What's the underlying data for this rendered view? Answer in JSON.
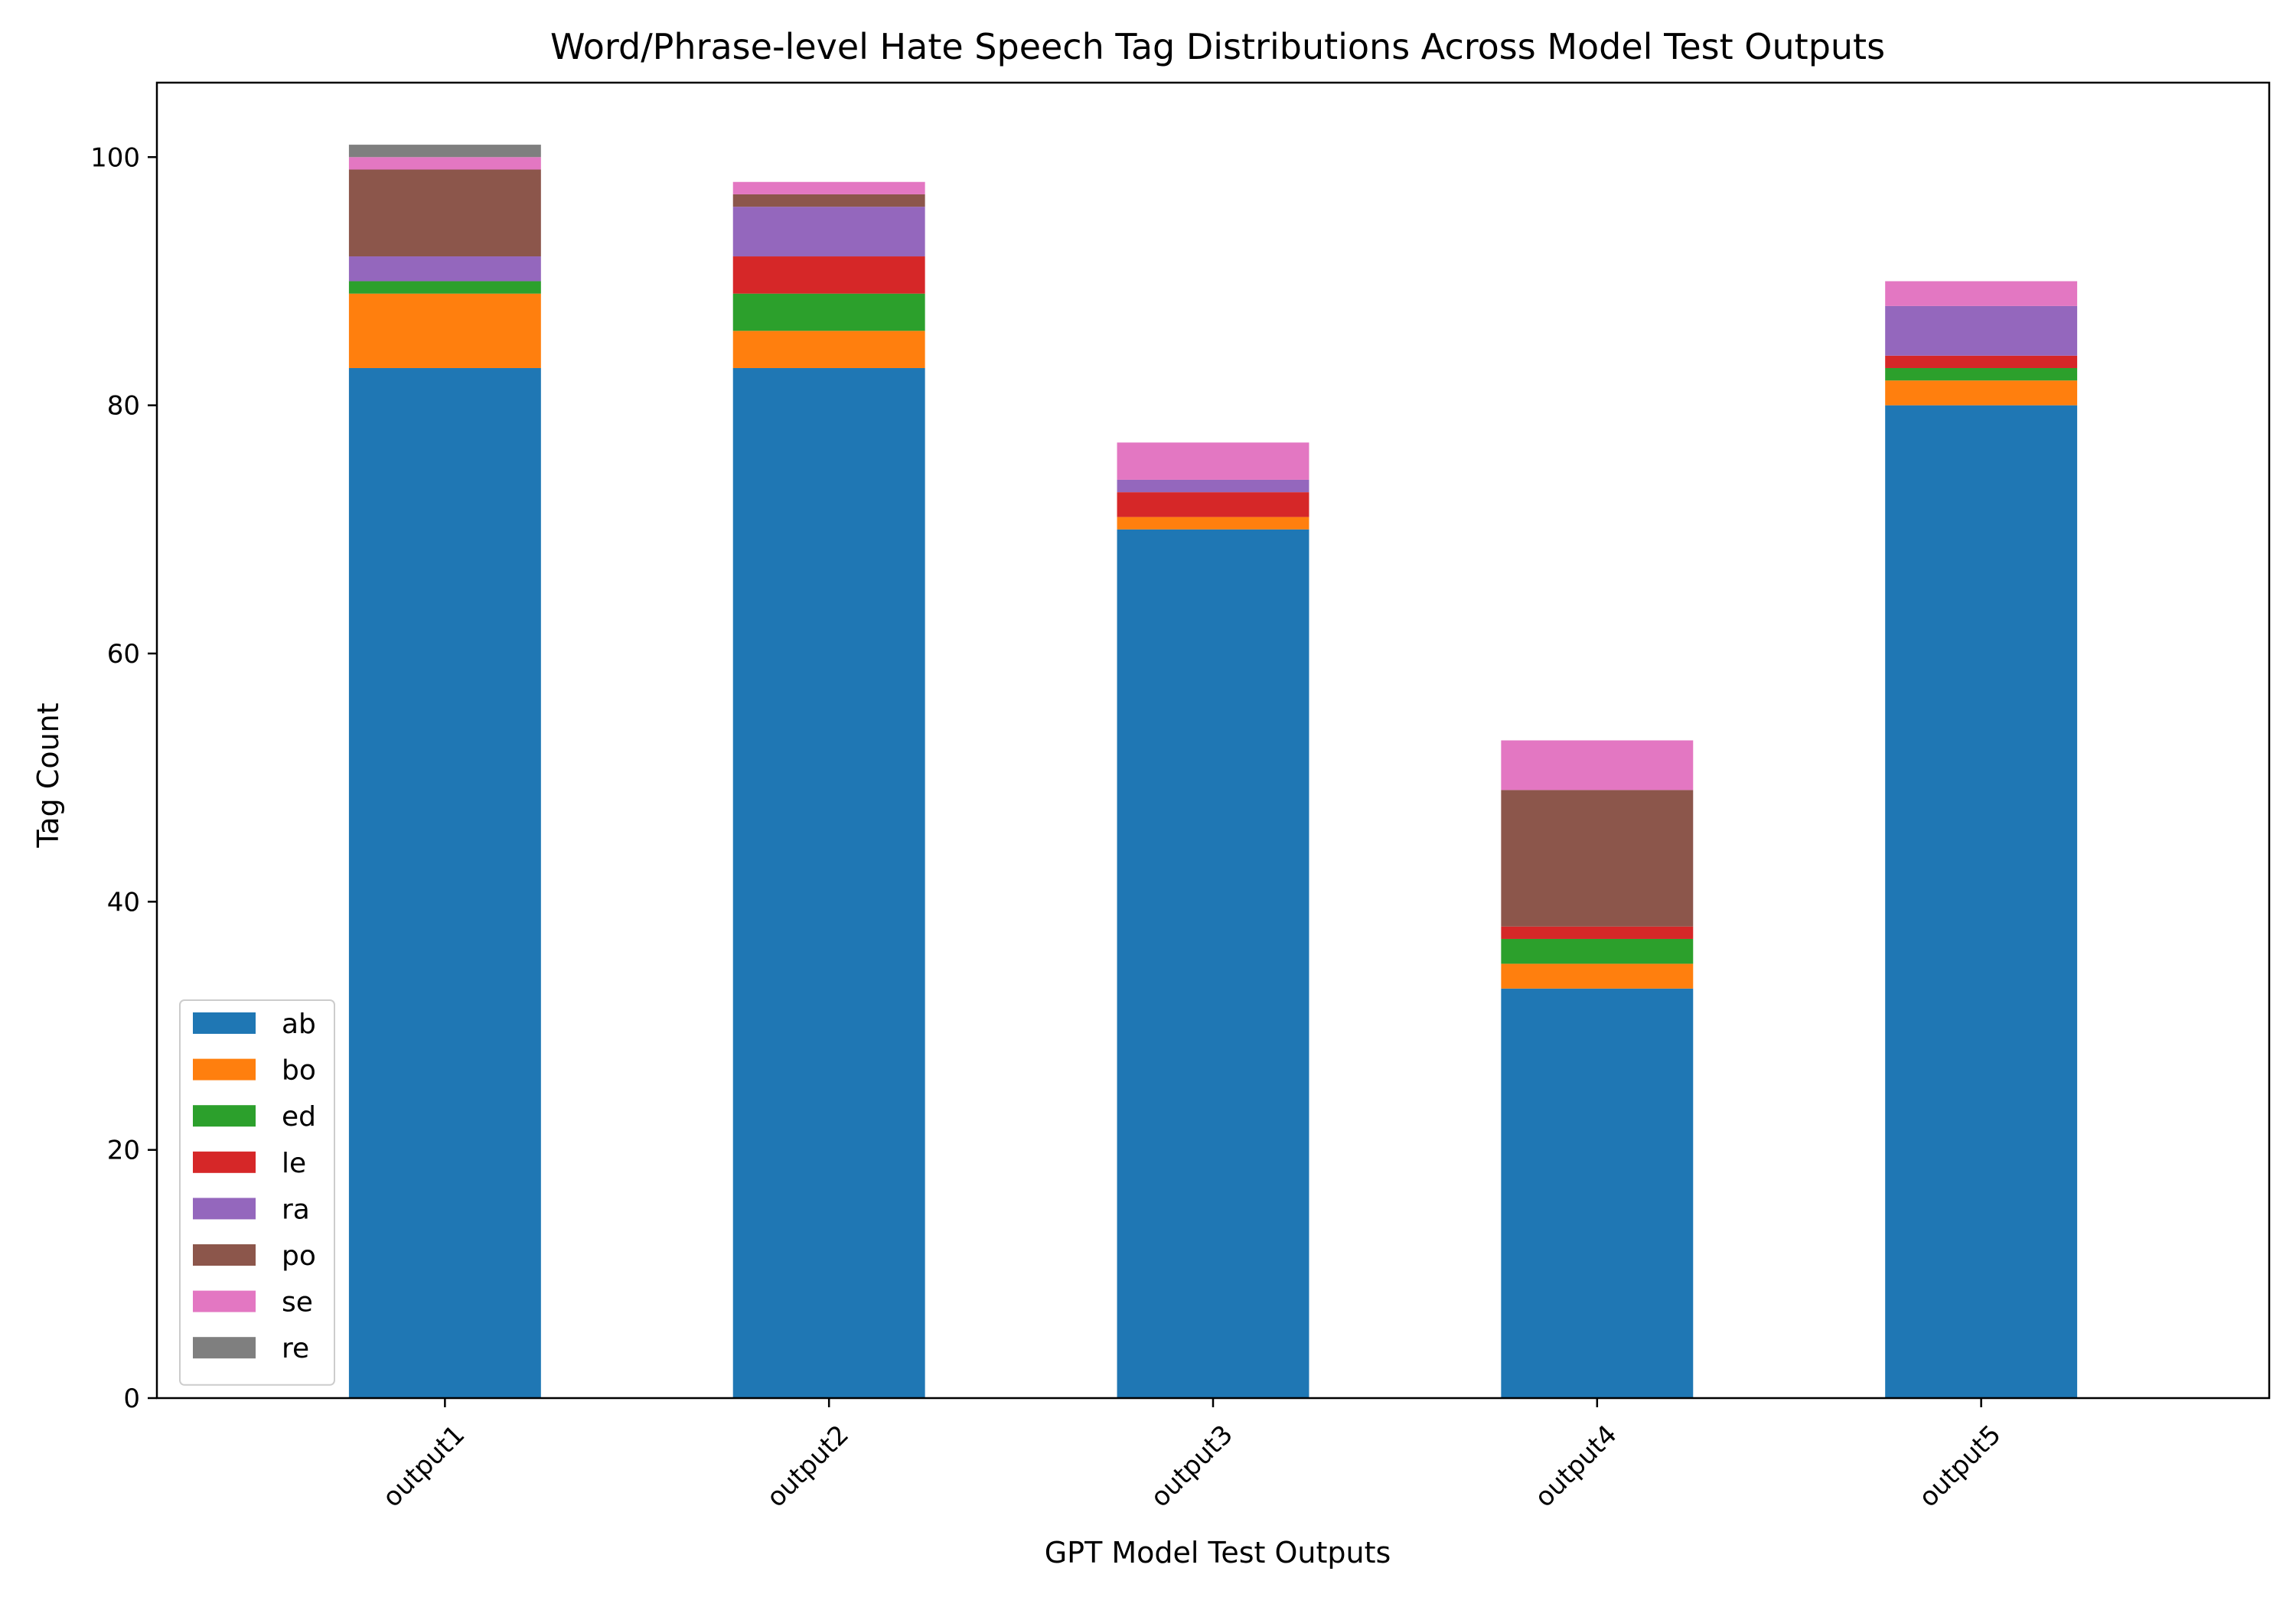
{
  "chart_data": {
    "type": "bar",
    "stacked": true,
    "title": "Word/Phrase-level Hate Speech Tag Distributions Across Model Test Outputs",
    "xlabel": "GPT Model Test Outputs",
    "ylabel": "Tag Count",
    "categories": [
      "output1",
      "output2",
      "output3",
      "output4",
      "output5"
    ],
    "ylim": [
      0,
      106
    ],
    "yticks": [
      0,
      20,
      40,
      60,
      80,
      100
    ],
    "grid": false,
    "legend_position": "lower-left",
    "series": [
      {
        "name": "ab",
        "color": "#1f77b4",
        "values": [
          83,
          83,
          70,
          33,
          80
        ]
      },
      {
        "name": "bo",
        "color": "#ff7f0e",
        "values": [
          6,
          3,
          1,
          2,
          2
        ]
      },
      {
        "name": "ed",
        "color": "#2ca02c",
        "values": [
          1,
          3,
          0,
          2,
          1
        ]
      },
      {
        "name": "le",
        "color": "#d62728",
        "values": [
          0,
          3,
          2,
          1,
          1
        ]
      },
      {
        "name": "ra",
        "color": "#9467bd",
        "values": [
          2,
          4,
          1,
          0,
          4
        ]
      },
      {
        "name": "po",
        "color": "#8c564b",
        "values": [
          7,
          1,
          0,
          11,
          0
        ]
      },
      {
        "name": "se",
        "color": "#e377c2",
        "values": [
          1,
          1,
          3,
          4,
          2
        ]
      },
      {
        "name": "re",
        "color": "#7f7f7f",
        "values": [
          1,
          0,
          0,
          0,
          0
        ]
      }
    ]
  }
}
